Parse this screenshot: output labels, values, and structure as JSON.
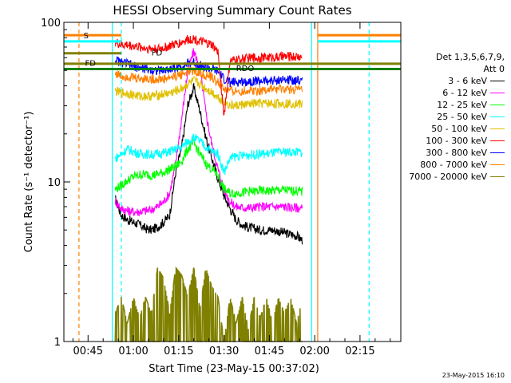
{
  "chart_data": {
    "type": "line",
    "title": "HESSI Observing Summary Count Rates",
    "xlabel": "Start Time (23-May-15 00:37:02)",
    "ylabel": "Count Rate (s⁻¹ detector⁻¹)",
    "y_scale": "log",
    "ylim": [
      1,
      100
    ],
    "xlim_minutes": [
      37.0,
      148.5
    ],
    "x_ticks": [
      {
        "label": "00:45",
        "minute": 45
      },
      {
        "label": "01:00",
        "minute": 60
      },
      {
        "label": "01:15",
        "minute": 75
      },
      {
        "label": "01:30",
        "minute": 90
      },
      {
        "label": "01:45",
        "minute": 105
      },
      {
        "label": "02:00",
        "minute": 120
      },
      {
        "label": "02:15",
        "minute": 135
      }
    ],
    "y_ticks": [
      {
        "label": "1",
        "value": 1
      },
      {
        "label": "10",
        "value": 10
      },
      {
        "label": "100",
        "value": 100
      }
    ],
    "legend": {
      "placement": "right",
      "header": [
        "Det 1,3,5,6,7,9,",
        "Att 0"
      ]
    },
    "series": [
      {
        "name": "3 - 6 keV",
        "color": "#000000",
        "x": [
          54,
          56,
          58,
          60,
          62,
          64,
          66,
          68,
          70,
          72,
          74,
          76,
          78,
          80,
          82,
          84,
          86,
          88,
          90,
          92,
          94,
          96,
          98,
          100,
          102,
          104,
          106,
          108,
          110,
          112,
          114,
          116
        ],
        "y": [
          7.8,
          6.2,
          5.8,
          5.6,
          5.4,
          5.1,
          5.0,
          5.2,
          5.6,
          6.2,
          11.5,
          16.5,
          30.5,
          39,
          28,
          19,
          14,
          10.5,
          8.2,
          6.8,
          5.8,
          5.4,
          5.2,
          5.1,
          5.0,
          5.0,
          5.0,
          4.9,
          4.8,
          4.7,
          4.6,
          4.3
        ]
      },
      {
        "name": "6 - 12 keV",
        "color": "#ff00ff",
        "x": [
          54,
          56,
          58,
          60,
          62,
          64,
          66,
          68,
          70,
          72,
          74,
          76,
          78,
          80,
          82,
          84,
          86,
          88,
          90,
          92,
          94,
          96,
          98,
          100,
          102,
          104,
          106,
          108,
          110,
          112,
          114,
          116
        ],
        "y": [
          7.6,
          6.8,
          6.6,
          6.5,
          6.5,
          6.6,
          6.7,
          7.0,
          7.5,
          8.5,
          13,
          25,
          50,
          66,
          52,
          27,
          17,
          12,
          9,
          7.5,
          7.0,
          6.9,
          6.9,
          6.9,
          7.0,
          7.0,
          7.0,
          7.0,
          7.0,
          6.9,
          6.9,
          6.8
        ]
      },
      {
        "name": "12 - 25 keV",
        "color": "#00ff00",
        "x": [
          54,
          56,
          58,
          60,
          62,
          64,
          66,
          68,
          70,
          72,
          74,
          76,
          78,
          80,
          82,
          84,
          86,
          88,
          90,
          92,
          94,
          96,
          98,
          100,
          102,
          104,
          106,
          108,
          110,
          112,
          114,
          116
        ],
        "y": [
          9.0,
          9.5,
          10.2,
          10.8,
          11.0,
          11.2,
          11.0,
          11.2,
          11.5,
          12.0,
          12.5,
          13.5,
          16,
          17.5,
          15,
          13,
          12,
          11,
          9.0,
          8.5,
          8.5,
          8.6,
          8.7,
          8.7,
          8.8,
          8.8,
          8.8,
          8.9,
          8.9,
          8.8,
          8.8,
          8.7
        ]
      },
      {
        "name": "25 - 50 keV",
        "color": "#00ffff",
        "x": [
          54,
          56,
          58,
          60,
          62,
          64,
          66,
          68,
          70,
          72,
          74,
          76,
          78,
          80,
          82,
          84,
          86,
          88,
          90,
          92,
          94,
          96,
          98,
          100,
          102,
          104,
          106,
          108,
          110,
          112,
          114,
          116
        ],
        "y": [
          14,
          15,
          16,
          15.5,
          15,
          15,
          14.8,
          15,
          15.2,
          15.5,
          16,
          16.5,
          18,
          19,
          18,
          16.5,
          15.5,
          15,
          11.5,
          14,
          14.5,
          14.6,
          14.8,
          14.8,
          15,
          15,
          15.2,
          15.3,
          15.4,
          15.4,
          15.4,
          15.3
        ]
      },
      {
        "name": "50 - 100 keV",
        "color": "#e0c000",
        "x": [
          54,
          56,
          58,
          60,
          62,
          64,
          66,
          68,
          70,
          72,
          74,
          76,
          78,
          80,
          82,
          84,
          86,
          88,
          90,
          92,
          94,
          96,
          98,
          100,
          102,
          104,
          106,
          108,
          110,
          112,
          114,
          116
        ],
        "y": [
          37,
          36,
          36,
          35,
          34.5,
          34.5,
          34.5,
          35,
          35.5,
          36,
          37,
          38.5,
          41,
          43,
          41,
          38.5,
          36.5,
          34,
          32,
          30,
          30,
          30.5,
          30.5,
          31,
          31,
          31,
          31,
          31,
          31,
          31,
          31,
          30.5
        ]
      },
      {
        "name": "100 - 300 keV",
        "color": "#ff0000",
        "x": [
          54,
          56,
          58,
          60,
          62,
          64,
          66,
          68,
          70,
          72,
          74,
          76,
          78,
          80,
          82,
          84,
          86,
          88,
          90,
          92,
          94,
          96,
          98,
          100,
          102,
          104,
          106,
          108,
          110,
          112,
          114,
          116
        ],
        "y": [
          75,
          72,
          72,
          71,
          70,
          69,
          68.5,
          68,
          69,
          71,
          73,
          75,
          78,
          79,
          76,
          74,
          72,
          65,
          26,
          57,
          58,
          59,
          59.5,
          60,
          60,
          60.5,
          60.5,
          60.5,
          61,
          61,
          61,
          60.5
        ]
      },
      {
        "name": "300 - 800 keV",
        "color": "#0000ff",
        "x": [
          54,
          56,
          58,
          60,
          62,
          64,
          66,
          68,
          70,
          72,
          74,
          76,
          78,
          80,
          82,
          84,
          86,
          88,
          90,
          92,
          94,
          96,
          98,
          100,
          102,
          104,
          106,
          108,
          110,
          112,
          114,
          116
        ],
        "y": [
          58,
          56,
          55,
          53,
          52,
          51,
          50.5,
          50,
          50,
          51,
          52,
          53,
          55,
          56,
          54,
          52,
          51,
          49,
          44,
          42,
          42,
          42.5,
          42.5,
          43,
          43,
          43,
          43,
          43.5,
          43.5,
          43.5,
          43.5,
          43
        ]
      },
      {
        "name": "800 - 7000 keV",
        "color": "#ff8000",
        "x": [
          54,
          56,
          58,
          60,
          62,
          64,
          66,
          68,
          70,
          72,
          74,
          76,
          78,
          80,
          82,
          84,
          86,
          88,
          90,
          92,
          94,
          96,
          98,
          100,
          102,
          104,
          106,
          108,
          110,
          112,
          114,
          116
        ],
        "y": [
          48,
          46,
          46,
          45,
          44.5,
          44.5,
          44,
          44,
          44,
          45,
          46,
          47.5,
          49,
          50,
          48,
          46.5,
          45,
          42,
          38,
          37,
          37,
          37,
          37.5,
          37.5,
          37.5,
          38,
          38,
          38,
          38,
          38,
          38,
          37.5
        ]
      },
      {
        "name": "7000 - 20000 keV",
        "color": "#808000",
        "x": [
          54,
          56,
          58,
          60,
          62,
          64,
          66,
          68,
          70,
          72,
          74,
          76,
          78,
          80,
          82,
          84,
          86,
          88,
          90,
          92,
          94,
          96,
          98,
          100,
          102,
          104,
          106,
          108,
          110,
          112,
          114,
          116
        ],
        "y": [
          1.5,
          1.9,
          1.3,
          1.9,
          1.4,
          1.9,
          1.5,
          2.9,
          2.5,
          1.5,
          2.9,
          2.6,
          1.9,
          2.9,
          1.6,
          2.9,
          2.2,
          1.9,
          1.0,
          1.9,
          1.3,
          1.9,
          1.2,
          1.9,
          1.4,
          1.9,
          1.3,
          1.9,
          1.5,
          1.9,
          1.3,
          1.9
        ]
      }
    ],
    "annotations": [
      {
        "label": "S",
        "minute": 43.5,
        "value": 83,
        "color": "#ff8000"
      },
      {
        "label": "FD",
        "minute": 44,
        "value": 56,
        "color": "#808000"
      },
      {
        "label": "FD",
        "minute": 66,
        "value": 65,
        "color": "#808000"
      },
      {
        "label": "RDO",
        "minute": 94,
        "value": 52,
        "color": "#008000"
      }
    ],
    "vertical_markers": [
      {
        "minute": 42,
        "color": "#ff8000",
        "style": "dashed"
      },
      {
        "minute": 53,
        "color": "#00ffff",
        "style": "solid"
      },
      {
        "minute": 56,
        "color": "#00ffff",
        "style": "dashed"
      },
      {
        "minute": 119,
        "color": "#00ffff",
        "style": "solid"
      },
      {
        "minute": 121,
        "color": "#ff8000",
        "style": "solid"
      },
      {
        "minute": 138,
        "color": "#00ffff",
        "style": "dashed"
      }
    ],
    "timestamp": "23-May-2015 16:10"
  }
}
